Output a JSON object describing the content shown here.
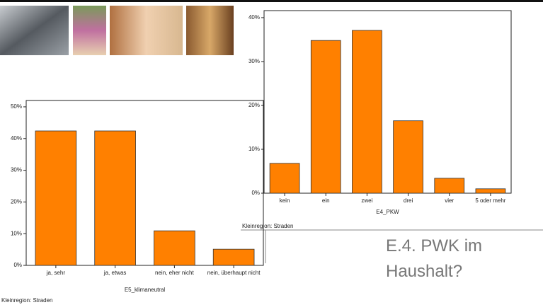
{
  "slide_title": "E.4. PWK im Haushalt?",
  "chart_data": [
    {
      "type": "bar",
      "categories": [
        "ja, sehr",
        "ja, etwas",
        "nein, eher nicht",
        "nein, überhaupt nicht"
      ],
      "values": [
        42.4,
        42.4,
        10.9,
        5.1
      ],
      "color": "#ff8000",
      "x_label": "E5_klimaneutral",
      "footer": "Kleinregion: Straden",
      "ylim": [
        0,
        52
      ],
      "yticks": [
        {
          "value": 0,
          "label": "0%"
        },
        {
          "value": 10,
          "label": "10%"
        },
        {
          "value": 20,
          "label": "20%"
        },
        {
          "value": 30,
          "label": "30%"
        },
        {
          "value": 40,
          "label": "40%"
        },
        {
          "value": 50,
          "label": "50%"
        }
      ]
    },
    {
      "type": "bar",
      "categories": [
        "kein",
        "ein",
        "zwei",
        "drei",
        "vier",
        "5 oder mehr"
      ],
      "values": [
        6.8,
        34.8,
        37.1,
        16.5,
        3.4,
        1.0
      ],
      "color": "#ff8000",
      "x_label": "E4_PKW",
      "footer": "Kleinregion: Straden",
      "ylim": [
        0,
        41.6
      ],
      "yticks": [
        {
          "value": 0,
          "label": "0%"
        },
        {
          "value": 10,
          "label": "10%"
        },
        {
          "value": 20,
          "label": "20%"
        },
        {
          "value": 30,
          "label": "30%"
        },
        {
          "value": 40,
          "label": "40%"
        }
      ]
    }
  ]
}
